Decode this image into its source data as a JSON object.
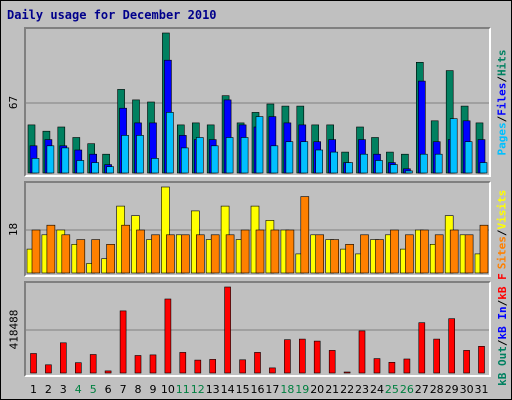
{
  "chart_data": {
    "type": "bar",
    "title": "Daily usage for December 2010",
    "categories": [
      "1",
      "2",
      "3",
      "4",
      "5",
      "6",
      "7",
      "8",
      "9",
      "10",
      "11",
      "12",
      "13",
      "14",
      "15",
      "16",
      "17",
      "18",
      "19",
      "20",
      "21",
      "22",
      "23",
      "24",
      "25",
      "26",
      "27",
      "28",
      "29",
      "30",
      "31"
    ],
    "weekend_days": [
      "4",
      "5",
      "11",
      "12",
      "18",
      "19",
      "25",
      "26"
    ],
    "colors": {
      "hits": "#008060",
      "files": "#0000ff",
      "pages": "#00c0ff",
      "visits": "#ffff00",
      "sites": "#ff8000",
      "kb_f": "#ff0000",
      "kb_in": "#0000ff",
      "kb_out": "#008060",
      "weekday_label": "#000000",
      "weekend_label": "#008040",
      "background": "#c0c0c0",
      "gridline": "#808080"
    },
    "panels": [
      {
        "ymax_label": "67",
        "ylim": [
          0,
          67
        ],
        "legend": [
          {
            "text": "Hits",
            "color": "#008060"
          },
          {
            "text": "Files",
            "color": "#0000ff"
          },
          {
            "text": "Pages",
            "color": "#00c0ff"
          }
        ],
        "separators": [
          "/",
          "/"
        ],
        "series": [
          {
            "name": "Hits",
            "values": [
              23,
              20,
              22,
              17,
              14,
              9,
              40,
              35,
              34,
              67,
              23,
              24,
              23,
              37,
              24,
              29,
              33,
              32,
              32,
              23,
              23,
              10,
              22,
              17,
              10,
              9,
              53,
              25,
              49,
              32,
              24
            ]
          },
          {
            "name": "Files",
            "values": [
              13,
              16,
              13,
              11,
              9,
              4,
              31,
              24,
              24,
              54,
              18,
              16,
              16,
              35,
              23,
              22,
              27,
              24,
              23,
              15,
              16,
              5,
              16,
              9,
              5,
              2,
              44,
              15,
              16,
              25,
              16
            ]
          },
          {
            "name": "Pages",
            "values": [
              7,
              13,
              12,
              6,
              5,
              3,
              18,
              18,
              7,
              29,
              12,
              17,
              13,
              17,
              17,
              27,
              13,
              15,
              15,
              11,
              10,
              5,
              9,
              6,
              4,
              1,
              9,
              9,
              26,
              15,
              5
            ]
          }
        ]
      },
      {
        "ymax_label": "18",
        "ylim": [
          0,
          18
        ],
        "legend": [
          {
            "text": "Visits",
            "color": "#ffff00"
          },
          {
            "text": "Sites",
            "color": "#ff8000"
          }
        ],
        "separators": [
          "/"
        ],
        "series": [
          {
            "name": "Visits",
            "values": [
              5,
              8,
              9,
              6,
              2,
              3,
              14,
              12,
              7,
              18,
              8,
              13,
              7,
              14,
              7,
              14,
              11,
              9,
              4,
              8,
              7,
              5,
              4,
              7,
              8,
              5,
              9,
              6,
              12,
              8,
              4
            ]
          },
          {
            "name": "Sites",
            "values": [
              9,
              10,
              8,
              7,
              7,
              6,
              10,
              9,
              8,
              8,
              8,
              8,
              8,
              8,
              9,
              9,
              9,
              9,
              16,
              8,
              7,
              6,
              8,
              7,
              9,
              8,
              9,
              8,
              9,
              8,
              10
            ]
          }
        ]
      },
      {
        "ymax_label": "418488",
        "ylim": [
          0,
          418488
        ],
        "legend": [
          {
            "text": "kB F",
            "color": "#ff0000"
          },
          {
            "text": "kB In",
            "color": "#0000ff"
          },
          {
            "text": "kB Out",
            "color": "#008060"
          }
        ],
        "separators": [
          "/",
          "/"
        ],
        "series": [
          {
            "name": "kB F",
            "values": [
              95000,
              40000,
              147000,
              50000,
              90000,
              10000,
              302000,
              85000,
              88000,
              360000,
              100000,
              63000,
              66000,
              418488,
              64000,
              100000,
              25000,
              162000,
              165000,
              155000,
              110000,
              5000,
              205000,
              70000,
              52000,
              68000,
              245000,
              165000,
              264000,
              110000,
              130000
            ]
          }
        ]
      }
    ]
  }
}
